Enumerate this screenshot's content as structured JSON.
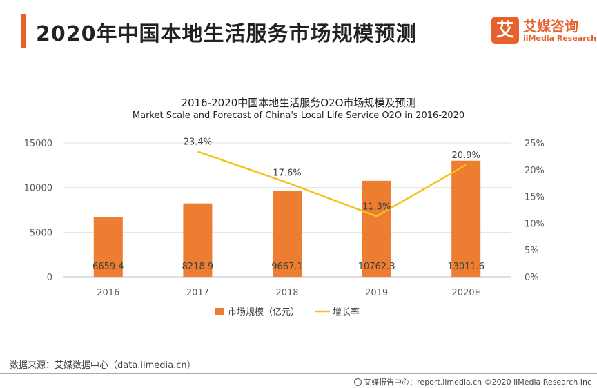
{
  "header": {
    "title": "2020年中国本地生活服务市场规模预测"
  },
  "logo": {
    "mark": "艾",
    "cn": "艾媒咨询",
    "en": "iiMedia Research"
  },
  "colors": {
    "accent": "#e8602c",
    "bar": "#ed7d31",
    "line": "#f5c21b"
  },
  "chart_data": {
    "type": "bar+line",
    "title": "2016-2020中国本地生活服务O2O市场规模及预测",
    "subtitle": "Market Scale and Forecast of China's Local Life Service O2O in 2016-2020",
    "categories": [
      "2016",
      "2017",
      "2018",
      "2019",
      "2020E"
    ],
    "series": [
      {
        "name": "市场规模（亿元）",
        "type": "bar",
        "axis": "left",
        "values": [
          6659.4,
          8218.9,
          9667.1,
          10762.3,
          13011.6
        ],
        "labels": [
          "6659.4",
          "8218.9",
          "9667.1",
          "10762.3",
          "13011.6"
        ]
      },
      {
        "name": "增长率",
        "type": "line",
        "axis": "right",
        "values": [
          null,
          23.4,
          17.6,
          11.3,
          20.9
        ],
        "labels": [
          null,
          "23.4%",
          "17.6%",
          "11.3%",
          "20.9%"
        ]
      }
    ],
    "y_left": {
      "ylim": [
        0,
        15000
      ],
      "ticks": [
        "0",
        "5000",
        "10000",
        "15000"
      ],
      "tick_values": [
        0,
        5000,
        10000,
        15000
      ]
    },
    "y_right": {
      "ylim": [
        0,
        25
      ],
      "ticks": [
        "0%",
        "5%",
        "10%",
        "15%",
        "20%",
        "25%"
      ],
      "tick_values": [
        0,
        5,
        10,
        15,
        20,
        25
      ]
    },
    "grid": true,
    "legend": "bottom"
  },
  "source": "数据来源：艾媒数据中心（data.iimedia.cn）",
  "footer": "艾媒报告中心：report.iimedia.cn  ©2020  iiMedia Research  Inc"
}
